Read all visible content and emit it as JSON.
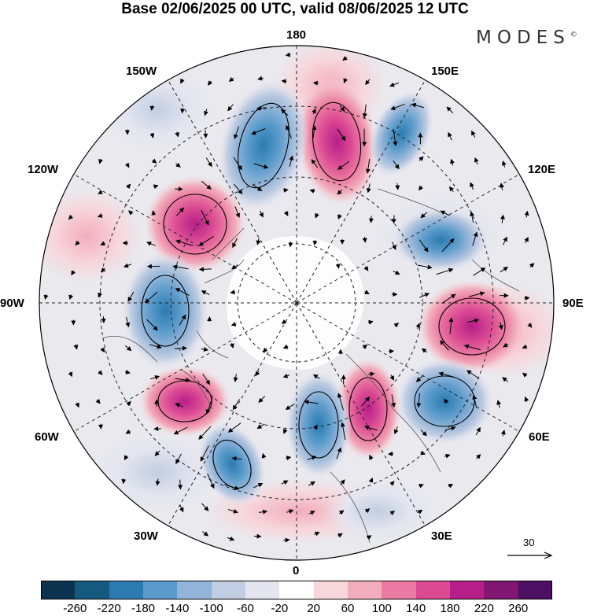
{
  "title": "Base 02/06/2025 00 UTC, valid 08/06/2025 12 UTC",
  "brand": "MODES",
  "brand_mark": "©",
  "map": {
    "projection": "north polar stereographic",
    "longitude_labels": {
      "top": "180",
      "bottom": "0",
      "left": "90W",
      "right": "90E",
      "upper_left_1": "150W",
      "upper_left_2": "120W",
      "upper_right_1": "150E",
      "upper_right_2": "120E",
      "lower_left_1": "60W",
      "lower_left_2": "30W",
      "lower_right_1": "60E",
      "lower_right_2": "30E"
    },
    "reference_vector": "30",
    "anomaly_centers": [
      {
        "sign": "positive",
        "strength": 220,
        "near": "150E"
      },
      {
        "sign": "negative",
        "strength": -180,
        "near": "165W"
      },
      {
        "sign": "negative",
        "strength": -120,
        "near": "150E-120E"
      },
      {
        "sign": "positive",
        "strength": 220,
        "near": "120W"
      },
      {
        "sign": "negative",
        "strength": -100,
        "near": "100W"
      },
      {
        "sign": "negative",
        "strength": -60,
        "near": "110E"
      },
      {
        "sign": "positive",
        "strength": 200,
        "near": "90E"
      },
      {
        "sign": "negative",
        "strength": -140,
        "near": "60E"
      },
      {
        "sign": "positive",
        "strength": 140,
        "near": "30E"
      },
      {
        "sign": "negative",
        "strength": -180,
        "near": "0"
      },
      {
        "sign": "positive",
        "strength": 140,
        "near": "60W"
      },
      {
        "sign": "negative",
        "strength": -140,
        "near": "45W"
      }
    ]
  },
  "colorbar": {
    "ticks": [
      "-260",
      "-220",
      "-180",
      "-140",
      "-100",
      "-60",
      "-20",
      "20",
      "60",
      "100",
      "140",
      "180",
      "220",
      "260"
    ],
    "colors": [
      "#0b3350",
      "#15597f",
      "#2b7bb0",
      "#5a9bcb",
      "#92b4d8",
      "#c0cde2",
      "#e4e5ef",
      "#ffffff",
      "#f7d7dc",
      "#f2adbd",
      "#ea7aa1",
      "#db4a93",
      "#b51f87",
      "#811772",
      "#4d0f61"
    ]
  }
}
